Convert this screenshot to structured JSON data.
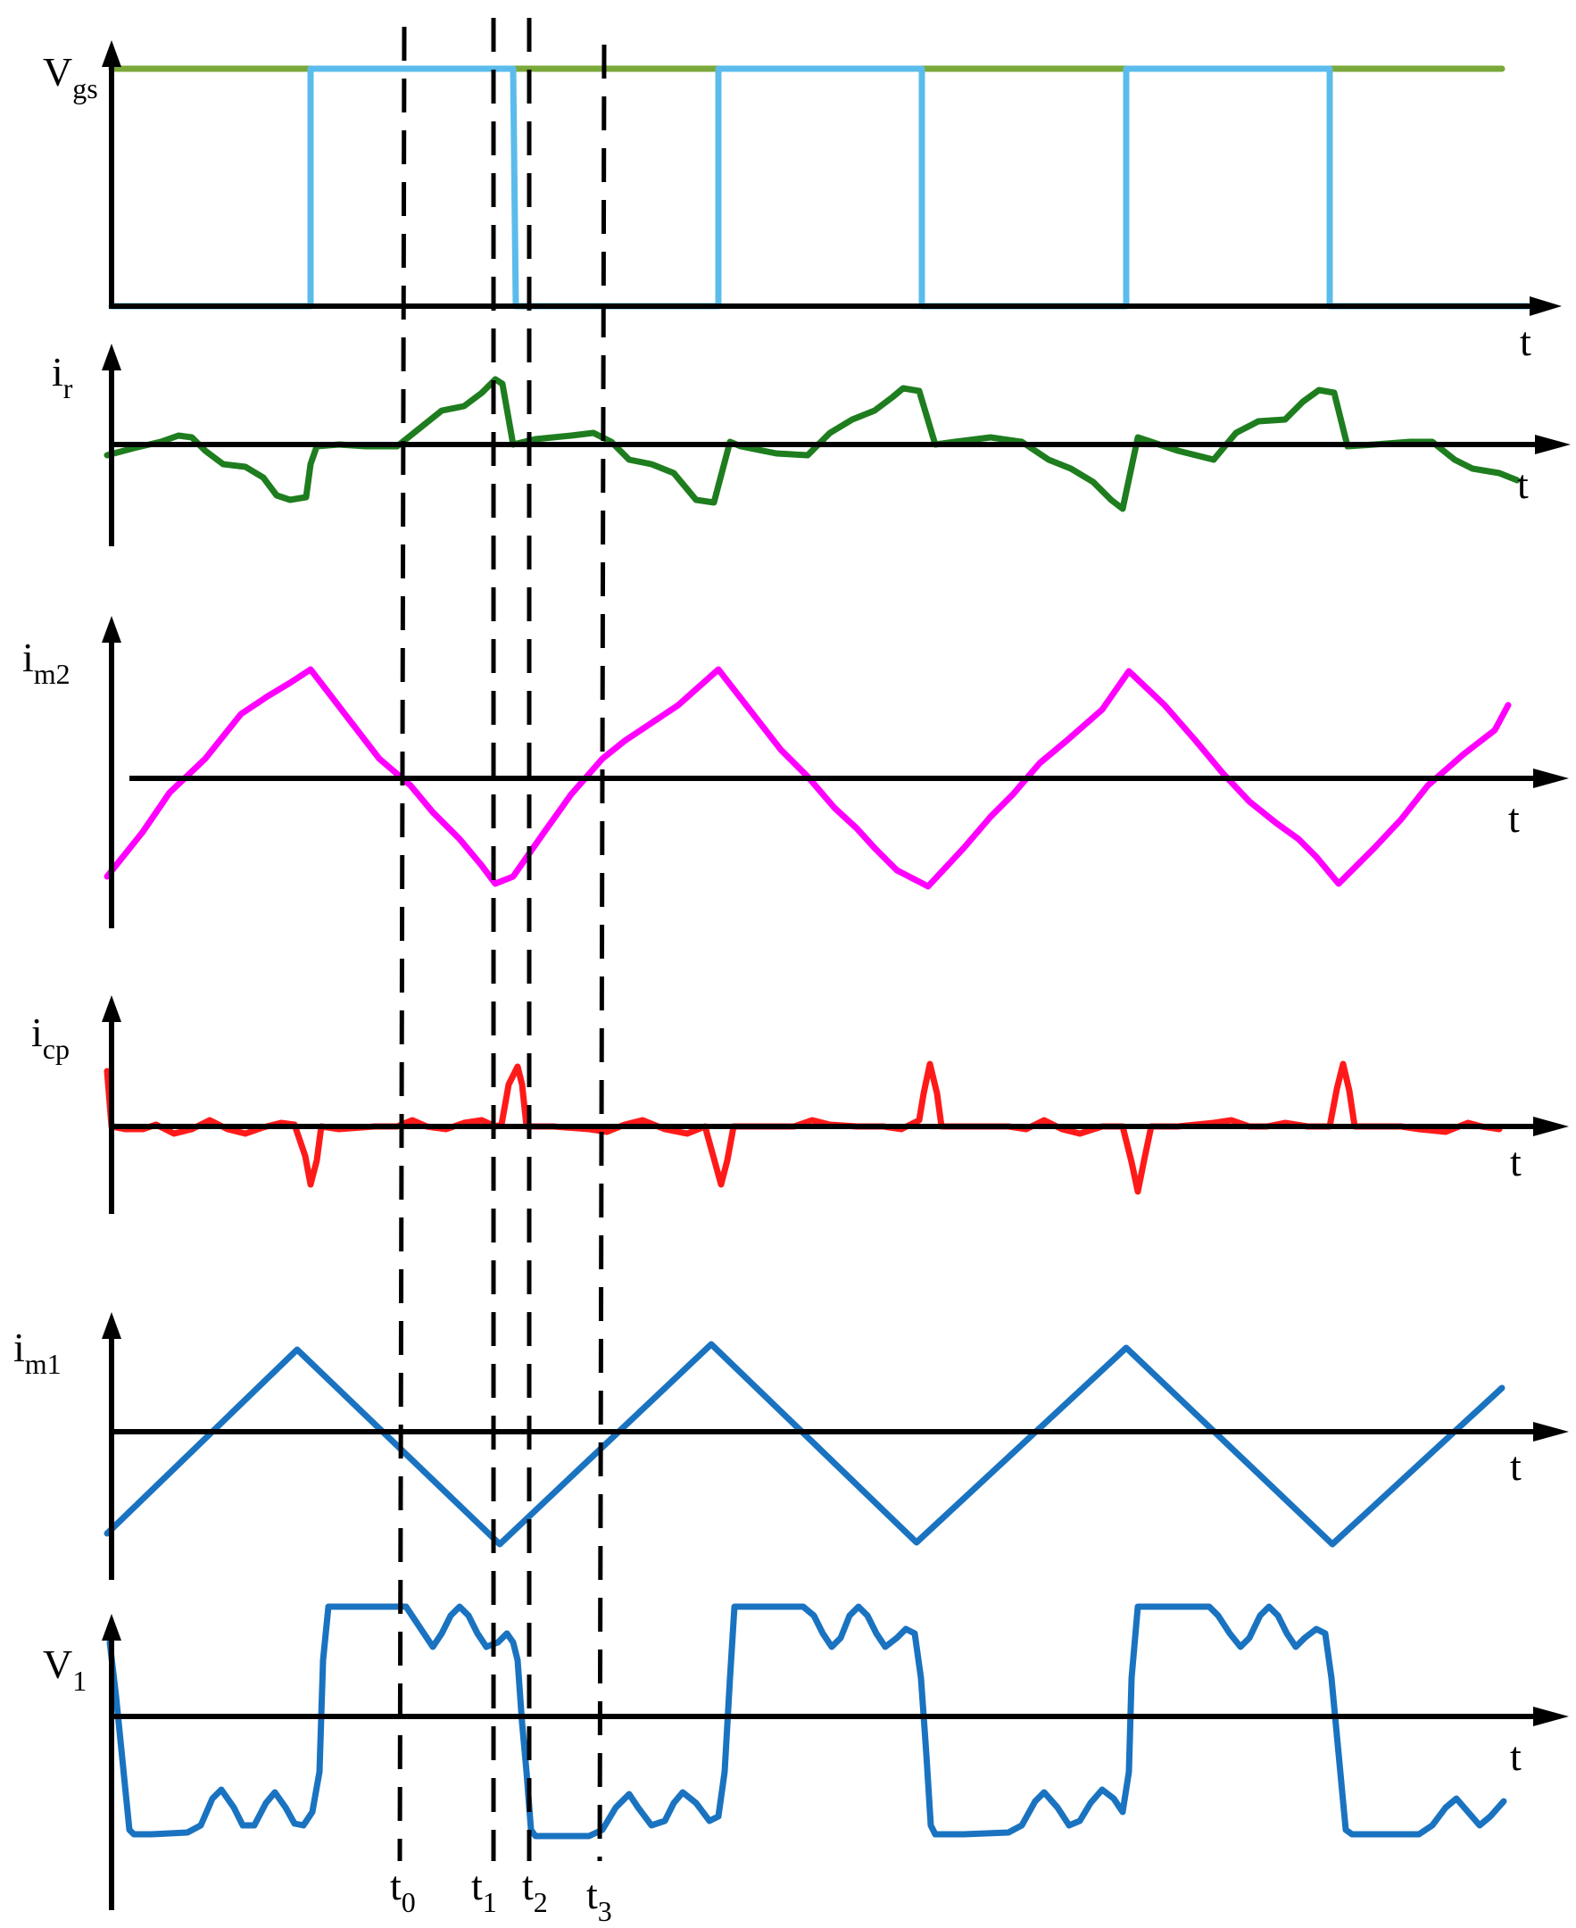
{
  "colors": {
    "background": "#ffffff",
    "axis": "#000000",
    "vgs_rail": "#7aa83a",
    "vgs_gate": "#5bbcec",
    "i_r": "#1e7d1e",
    "i_m2": "#ff00ff",
    "i_cp": "#ff1a1a",
    "i_m1": "#1a73c0",
    "v_1": "#1a73c0"
  },
  "time_axis_label": "t",
  "panels": [
    {
      "id": "vgs",
      "main": "V",
      "sub": "gs"
    },
    {
      "id": "ir",
      "main": "i",
      "sub": "r"
    },
    {
      "id": "im2",
      "main": "i",
      "sub": "m2"
    },
    {
      "id": "icp",
      "main": "i",
      "sub": "cp"
    },
    {
      "id": "im1",
      "main": "i",
      "sub": "m1"
    },
    {
      "id": "v1",
      "main": "V",
      "sub": "1"
    }
  ],
  "time_markers": [
    {
      "main": "t",
      "sub": "0"
    },
    {
      "main": "t",
      "sub": "1"
    },
    {
      "main": "t",
      "sub": "2"
    },
    {
      "main": "t",
      "sub": "3"
    }
  ]
}
